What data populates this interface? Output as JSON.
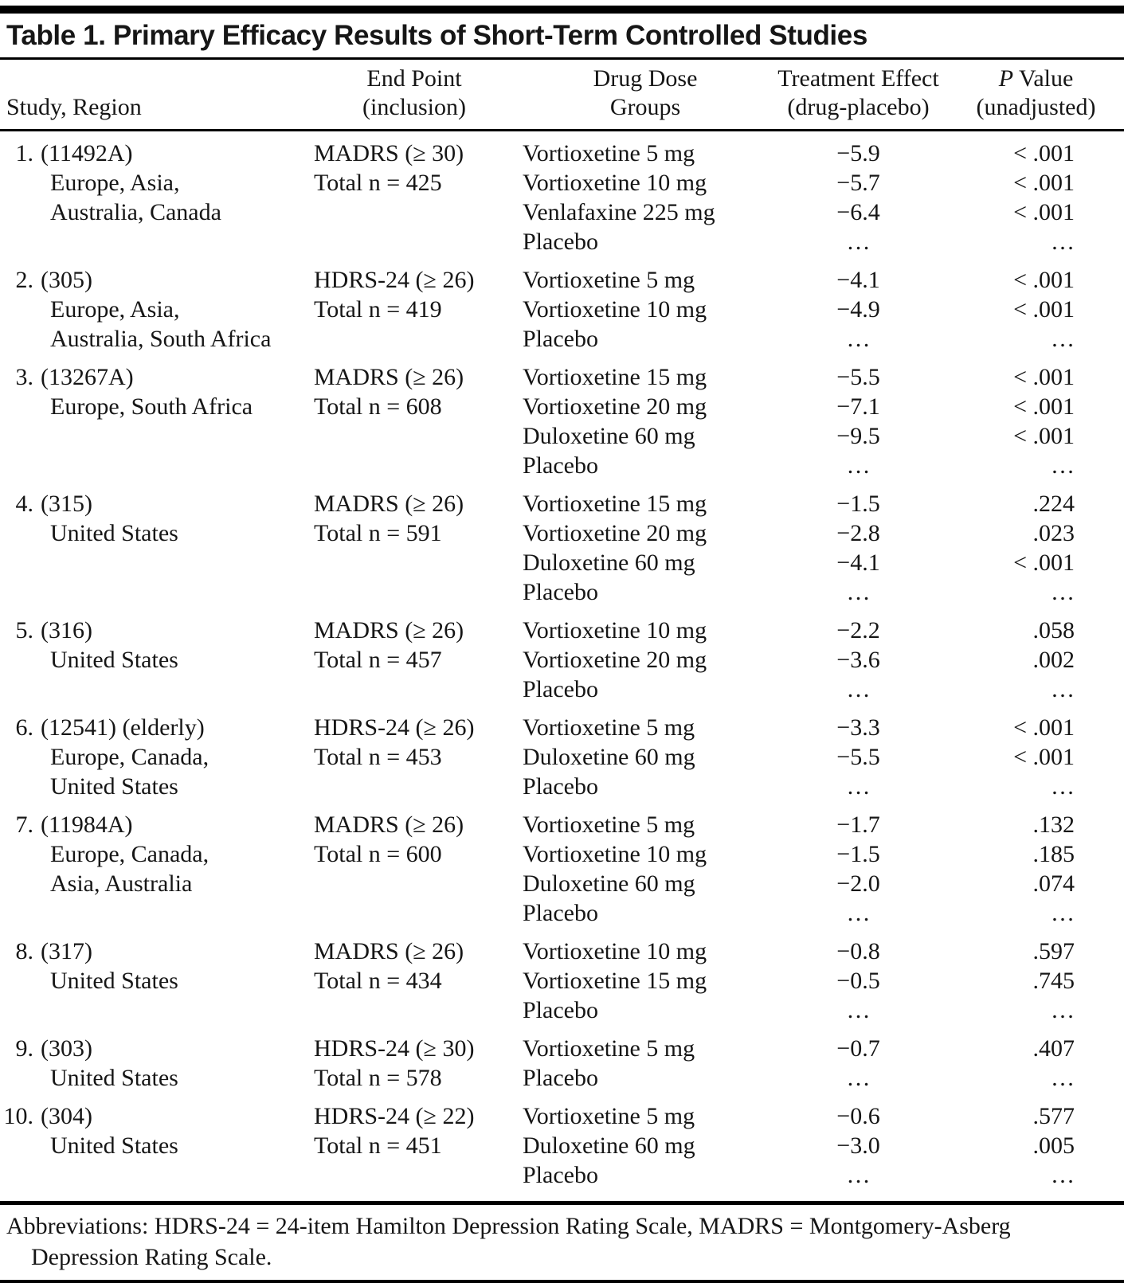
{
  "table": {
    "title": "Table 1. Primary Efficacy Results of Short-Term Controlled Studies",
    "columns": {
      "study": "Study, Region",
      "endpoint_line1": "End Point",
      "endpoint_line2": "(inclusion)",
      "dose_line1": "Drug Dose",
      "dose_line2": "Groups",
      "effect_line1": "Treatment Effect",
      "effect_line2": "(drug-placebo)",
      "p_italic": "P",
      "p_rest": " Value",
      "p_line2": "(unadjusted)"
    },
    "studies": [
      {
        "num": "1.",
        "id": "(11492A)",
        "regions": [
          "Europe, Asia,",
          "Australia, Canada"
        ],
        "endpoint": [
          "MADRS (≥ 30)",
          "Total n = 425"
        ],
        "groups": [
          {
            "name": "Vortioxetine 5 mg",
            "effect": "−5.9",
            "p": "< .001"
          },
          {
            "name": "Vortioxetine 10 mg",
            "effect": "−5.7",
            "p": "< .001"
          },
          {
            "name": "Venlafaxine 225 mg",
            "effect": "−6.4",
            "p": "< .001"
          },
          {
            "name": "Placebo",
            "effect": "…",
            "p": "…"
          }
        ]
      },
      {
        "num": "2.",
        "id": "(305)",
        "regions": [
          "Europe, Asia,",
          "Australia, South Africa"
        ],
        "endpoint": [
          "HDRS-24 (≥ 26)",
          "Total n = 419"
        ],
        "groups": [
          {
            "name": "Vortioxetine 5 mg",
            "effect": "−4.1",
            "p": "< .001"
          },
          {
            "name": "Vortioxetine 10 mg",
            "effect": "−4.9",
            "p": "< .001"
          },
          {
            "name": "Placebo",
            "effect": "…",
            "p": "…"
          }
        ]
      },
      {
        "num": "3.",
        "id": "(13267A)",
        "regions": [
          "Europe, South Africa"
        ],
        "endpoint": [
          "MADRS (≥ 26)",
          "Total n = 608"
        ],
        "groups": [
          {
            "name": "Vortioxetine 15 mg",
            "effect": "−5.5",
            "p": "< .001"
          },
          {
            "name": "Vortioxetine 20 mg",
            "effect": "−7.1",
            "p": "< .001"
          },
          {
            "name": "Duloxetine 60 mg",
            "effect": "−9.5",
            "p": "< .001"
          },
          {
            "name": "Placebo",
            "effect": "…",
            "p": "…"
          }
        ]
      },
      {
        "num": "4.",
        "id": "(315)",
        "regions": [
          "United States"
        ],
        "endpoint": [
          "MADRS (≥ 26)",
          "Total n = 591"
        ],
        "groups": [
          {
            "name": "Vortioxetine 15 mg",
            "effect": "−1.5",
            "p": ".224"
          },
          {
            "name": "Vortioxetine 20 mg",
            "effect": "−2.8",
            "p": ".023"
          },
          {
            "name": "Duloxetine 60 mg",
            "effect": "−4.1",
            "p": "< .001"
          },
          {
            "name": "Placebo",
            "effect": "…",
            "p": "…"
          }
        ]
      },
      {
        "num": "5.",
        "id": "(316)",
        "regions": [
          "United States"
        ],
        "endpoint": [
          "MADRS (≥ 26)",
          "Total n = 457"
        ],
        "groups": [
          {
            "name": "Vortioxetine 10 mg",
            "effect": "−2.2",
            "p": ".058"
          },
          {
            "name": "Vortioxetine 20 mg",
            "effect": "−3.6",
            "p": ".002"
          },
          {
            "name": "Placebo",
            "effect": "…",
            "p": "…"
          }
        ]
      },
      {
        "num": "6.",
        "id": "(12541) (elderly)",
        "regions": [
          "Europe, Canada,",
          "United States"
        ],
        "endpoint": [
          "HDRS-24 (≥ 26)",
          "Total n = 453"
        ],
        "groups": [
          {
            "name": "Vortioxetine 5 mg",
            "effect": "−3.3",
            "p": "< .001"
          },
          {
            "name": "Duloxetine 60 mg",
            "effect": "−5.5",
            "p": "< .001"
          },
          {
            "name": "Placebo",
            "effect": "…",
            "p": "…"
          }
        ]
      },
      {
        "num": "7.",
        "id": "(11984A)",
        "regions": [
          "Europe, Canada,",
          "Asia, Australia"
        ],
        "endpoint": [
          "MADRS (≥ 26)",
          "Total n = 600"
        ],
        "groups": [
          {
            "name": "Vortioxetine 5 mg",
            "effect": "−1.7",
            "p": ".132"
          },
          {
            "name": "Vortioxetine 10 mg",
            "effect": "−1.5",
            "p": ".185"
          },
          {
            "name": "Duloxetine 60 mg",
            "effect": "−2.0",
            "p": ".074"
          },
          {
            "name": "Placebo",
            "effect": "…",
            "p": "…"
          }
        ]
      },
      {
        "num": "8.",
        "id": "(317)",
        "regions": [
          "United States"
        ],
        "endpoint": [
          "MADRS (≥ 26)",
          "Total n = 434"
        ],
        "groups": [
          {
            "name": "Vortioxetine 10 mg",
            "effect": "−0.8",
            "p": ".597"
          },
          {
            "name": "Vortioxetine 15 mg",
            "effect": "−0.5",
            "p": ".745"
          },
          {
            "name": "Placebo",
            "effect": "…",
            "p": "…"
          }
        ]
      },
      {
        "num": "9.",
        "id": "(303)",
        "regions": [
          "United States"
        ],
        "endpoint": [
          "HDRS-24 (≥ 30)",
          "Total n = 578"
        ],
        "groups": [
          {
            "name": "Vortioxetine 5 mg",
            "effect": "−0.7",
            "p": ".407"
          },
          {
            "name": "Placebo",
            "effect": "…",
            "p": "…"
          }
        ]
      },
      {
        "num": "10.",
        "id": "(304)",
        "regions": [
          "United States"
        ],
        "endpoint": [
          "HDRS-24 (≥ 22)",
          "Total n = 451"
        ],
        "groups": [
          {
            "name": "Vortioxetine 5 mg",
            "effect": "−0.6",
            "p": ".577"
          },
          {
            "name": "Duloxetine 60 mg",
            "effect": "−3.0",
            "p": ".005"
          },
          {
            "name": "Placebo",
            "effect": "…",
            "p": "…"
          }
        ]
      }
    ],
    "footnote_line1": "Abbreviations: HDRS-24 = 24-item Hamilton Depression Rating Scale, MADRS = Montgomery-Asberg",
    "footnote_line2": "Depression Rating Scale."
  }
}
